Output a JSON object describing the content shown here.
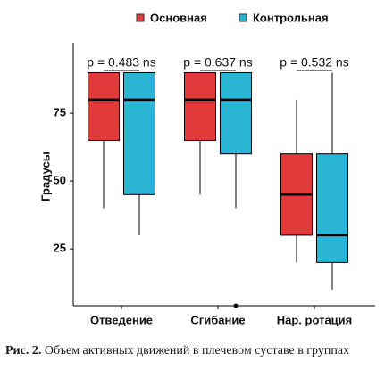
{
  "chart_data": {
    "type": "box",
    "y_label": "Градусы",
    "categories": [
      "Отведение",
      "Сгибание",
      "Нар. ротация"
    ],
    "series": [
      {
        "name": "Основная",
        "color": "#e03a3a",
        "whisker_low": [
          40,
          45,
          20
        ],
        "q1": [
          65,
          65,
          30
        ],
        "median": [
          80,
          80,
          45
        ],
        "q3": [
          90,
          90,
          60
        ],
        "whisker_high": [
          90,
          90,
          80
        ],
        "outliers": [
          [],
          [],
          []
        ]
      },
      {
        "name": "Контрольная",
        "color": "#2ab5d4",
        "whisker_low": [
          30,
          40,
          10
        ],
        "q1": [
          45,
          60,
          20
        ],
        "median": [
          80,
          80,
          30
        ],
        "q3": [
          90,
          90,
          60
        ],
        "whisker_high": [
          90,
          90,
          90
        ],
        "outliers": [
          [],
          [
            4
          ],
          []
        ]
      }
    ],
    "annotations": [
      "p = 0.483 ns",
      "p = 0.637 ns",
      "p = 0.532 ns"
    ],
    "ylim": [
      4,
      101
    ],
    "yticks": [
      25,
      50,
      75
    ],
    "legend": "top"
  },
  "caption": {
    "label": "Рис. 2.",
    "text": "Объем активных движений в плечевом суставе в группах"
  }
}
